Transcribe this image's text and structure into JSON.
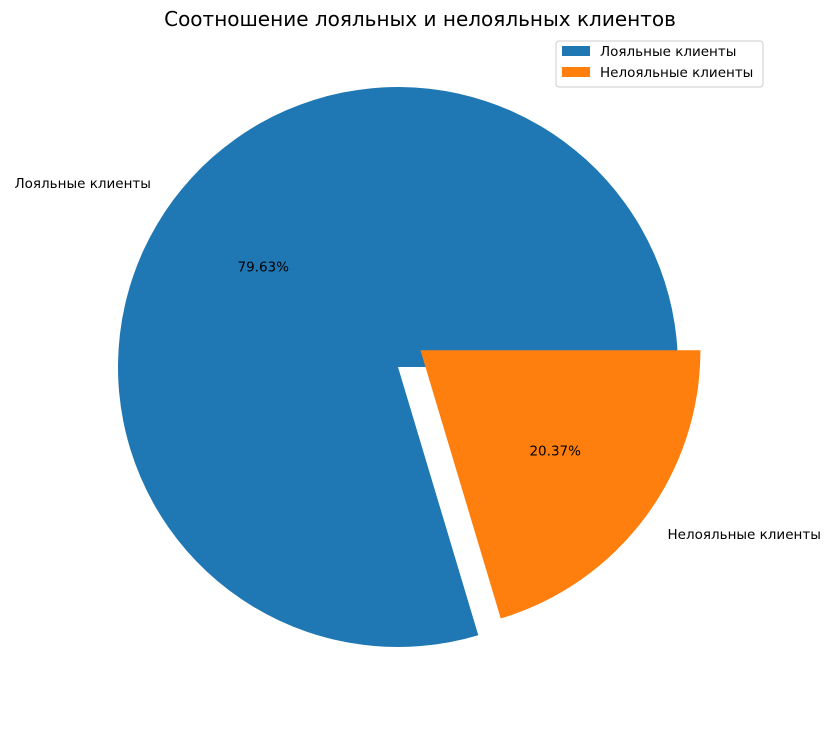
{
  "chart_data": {
    "type": "pie",
    "title": "Соотношение лояльных и нелояльных клиентов",
    "categories": [
      "Лояльные клиенты",
      "Нелояльные клиенты"
    ],
    "values": [
      79.63,
      20.37
    ],
    "pct_labels": [
      "79.63%",
      "20.37%"
    ],
    "colors": [
      "#1f77b4",
      "#ff7f0e"
    ],
    "explode": [
      0,
      0.1
    ],
    "start_angle_deg": 0,
    "legend": {
      "placement": "top-right",
      "entries": [
        "Лояльные клиенты",
        "Нелояльные клиенты"
      ]
    }
  }
}
